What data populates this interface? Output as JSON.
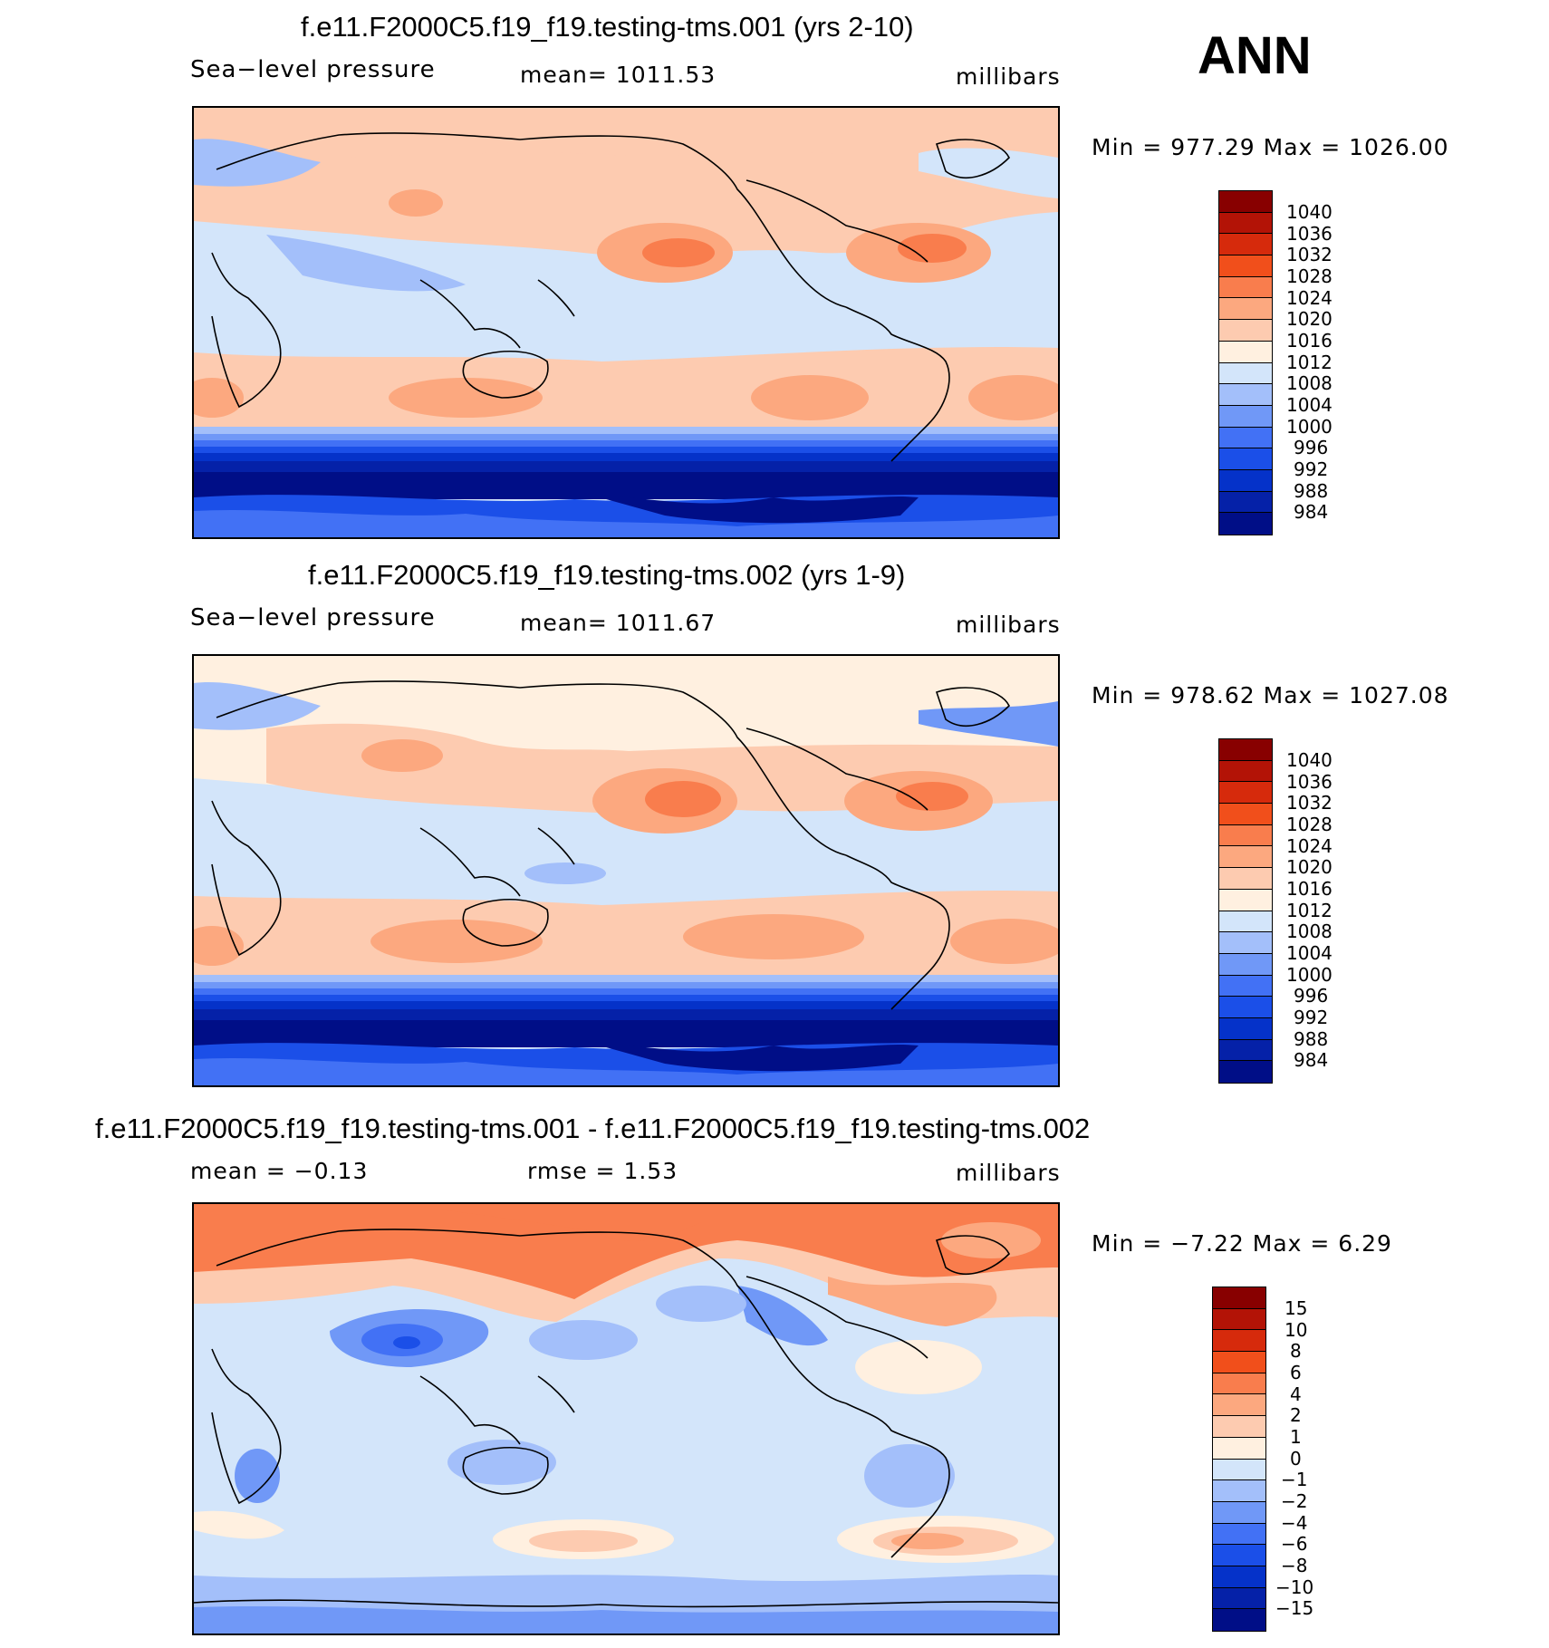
{
  "season": "ANN",
  "colors": {
    "slp": [
      "#000e87",
      "#0521a8",
      "#0532c9",
      "#1b4fe8",
      "#4271f5",
      "#7098f7",
      "#a3bffa",
      "#d3e5fa",
      "#fff0e0",
      "#fdcbb0",
      "#fca87f",
      "#f97d4d",
      "#f14f1b",
      "#d62a0c",
      "#b31306",
      "#880000"
    ],
    "diff": [
      "#000e87",
      "#0521a8",
      "#0532c9",
      "#1b4fe8",
      "#4271f5",
      "#7098f7",
      "#a3bffa",
      "#d3e5fa",
      "#fff0e0",
      "#fdcbb0",
      "#fca87f",
      "#f97d4d",
      "#f14f1b",
      "#d62a0c",
      "#b31306",
      "#880000"
    ]
  },
  "panels": [
    {
      "title": "f.e11.F2000C5.f19_f19.testing-tms.001 (yrs 2-10)",
      "left_label": "Sea−level pressure",
      "center_label": "mean=  1011.53",
      "units": "millibars",
      "minmax": "Min  =  977.29  Max  =  1026.00",
      "colorbar_labels": [
        "1040",
        "1036",
        "1032",
        "1028",
        "1024",
        "1020",
        "1016",
        "1012",
        "1008",
        "1004",
        "1000",
        "996",
        "992",
        "988",
        "984"
      ]
    },
    {
      "title": "f.e11.F2000C5.f19_f19.testing-tms.002 (yrs 1-9)",
      "left_label": "Sea−level pressure",
      "center_label": "mean=  1011.67",
      "units": "millibars",
      "minmax": "Min  =  978.62  Max  =  1027.08",
      "colorbar_labels": [
        "1040",
        "1036",
        "1032",
        "1028",
        "1024",
        "1020",
        "1016",
        "1012",
        "1008",
        "1004",
        "1000",
        "996",
        "992",
        "988",
        "984"
      ]
    },
    {
      "title": "f.e11.F2000C5.f19_f19.testing-tms.001 - f.e11.F2000C5.f19_f19.testing-tms.002",
      "left_label": "mean  =    −0.13",
      "center_label": "rmse  =      1.53",
      "units": "millibars",
      "minmax": "Min  =    −7.22  Max  =      6.29",
      "colorbar_labels": [
        "15",
        "10",
        "8",
        "6",
        "4",
        "2",
        "1",
        "0",
        "−1",
        "−2",
        "−4",
        "−6",
        "−8",
        "−10",
        "−15"
      ]
    }
  ]
}
